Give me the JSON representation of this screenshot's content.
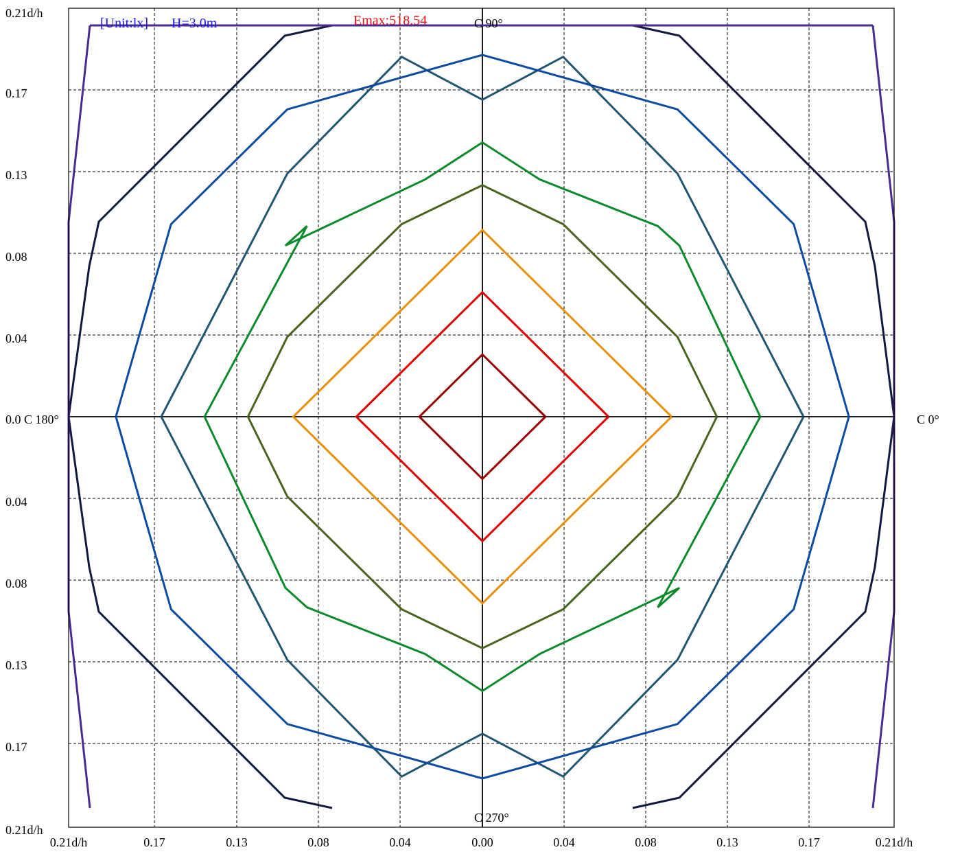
{
  "chart_data": {
    "type": "isolux contour",
    "header": {
      "unit_label": "[Unit:lx]",
      "height_label": "H=3.0m",
      "emax_label": "Emax:518.54"
    },
    "c_labels": {
      "top": "C 90°",
      "bottom": "C 270°",
      "left": "0.0 C 180°",
      "right": "C 0°"
    },
    "x_tick_labels": [
      "0.21d/h",
      "0.17",
      "0.13",
      "0.08",
      "0.04",
      "0.00",
      "0.04",
      "0.08",
      "0.13",
      "0.17",
      "0.21d/h"
    ],
    "y_tick_labels": [
      "0.21d/h",
      "0.17",
      "0.13",
      "0.08",
      "0.04",
      "0.04",
      "0.08",
      "0.13",
      "0.17",
      "0.21d/h"
    ],
    "grid": "dashed",
    "colors": {
      "dark_red": "#990000",
      "red": "#dd0000",
      "orange": "#e8900a",
      "olive": "#4a6420",
      "green": "#0a8a2a",
      "teal": "#215670",
      "blue": "#0d4aa0",
      "navy": "#101a3e",
      "purple": "#4a2a90"
    },
    "contours": [
      {
        "color": "#990000",
        "points": [
          [
            0.032,
            0
          ],
          [
            0,
            0.032
          ],
          [
            -0.032,
            0
          ],
          [
            0,
            -0.032
          ],
          [
            0.032,
            0
          ]
        ]
      },
      {
        "color": "#dd0000",
        "points": [
          [
            0.064,
            0
          ],
          [
            0,
            0.064
          ],
          [
            -0.064,
            0
          ],
          [
            0,
            -0.064
          ],
          [
            0.064,
            0
          ]
        ]
      },
      {
        "color": "#e8900a",
        "points": [
          [
            0.096,
            0
          ],
          [
            0,
            0.096
          ],
          [
            -0.096,
            0
          ],
          [
            0,
            -0.096
          ],
          [
            0.096,
            0
          ]
        ]
      },
      {
        "color": "#4a6420",
        "points": [
          [
            0.119,
            0
          ],
          [
            0.099,
            0.041
          ],
          [
            0.041,
            0.099
          ],
          [
            0,
            0.119
          ],
          [
            -0.041,
            0.099
          ],
          [
            -0.099,
            0.041
          ],
          [
            -0.119,
            0
          ],
          [
            -0.099,
            -0.041
          ],
          [
            -0.041,
            -0.099
          ],
          [
            0,
            -0.119
          ],
          [
            0.041,
            -0.099
          ],
          [
            0.099,
            -0.041
          ],
          [
            0.119,
            0
          ]
        ]
      },
      {
        "color": "#0a8a2a",
        "points": [
          [
            0.141,
            0
          ],
          [
            0.1,
            0.088
          ],
          [
            0.089,
            0.098
          ],
          [
            0.029,
            0.122
          ],
          [
            0,
            0.141
          ],
          [
            -0.029,
            0.122
          ],
          [
            -0.1,
            0.088
          ],
          [
            -0.089,
            0.098
          ],
          [
            -0.141,
            0
          ],
          [
            -0.1,
            -0.088
          ],
          [
            -0.089,
            -0.098
          ],
          [
            -0.029,
            -0.122
          ],
          [
            0,
            -0.141
          ],
          [
            0.029,
            -0.122
          ],
          [
            0.1,
            -0.088
          ],
          [
            0.089,
            -0.098
          ],
          [
            0.141,
            0
          ]
        ]
      },
      {
        "color": "#215670",
        "points": [
          [
            0.163,
            0
          ],
          [
            0.099,
            0.125
          ],
          [
            0.041,
            0.185
          ],
          [
            0,
            0.163
          ],
          [
            -0.041,
            0.185
          ],
          [
            -0.099,
            0.125
          ],
          [
            -0.163,
            0
          ],
          [
            -0.099,
            -0.125
          ],
          [
            -0.041,
            -0.185
          ],
          [
            0,
            -0.163
          ],
          [
            0.041,
            -0.185
          ],
          [
            0.099,
            -0.125
          ],
          [
            0.163,
            0
          ]
        ]
      },
      {
        "color": "#0d4aa0",
        "points": [
          [
            0.186,
            0
          ],
          [
            0.158,
            0.099
          ],
          [
            0.099,
            0.158
          ],
          [
            0,
            0.186
          ],
          [
            -0.099,
            0.158
          ],
          [
            -0.158,
            0.099
          ],
          [
            -0.186,
            0
          ],
          [
            -0.158,
            -0.099
          ],
          [
            -0.099,
            -0.158
          ],
          [
            0,
            -0.186
          ],
          [
            0.099,
            -0.158
          ],
          [
            0.158,
            -0.099
          ],
          [
            0.186,
            0
          ]
        ]
      }
    ]
  }
}
